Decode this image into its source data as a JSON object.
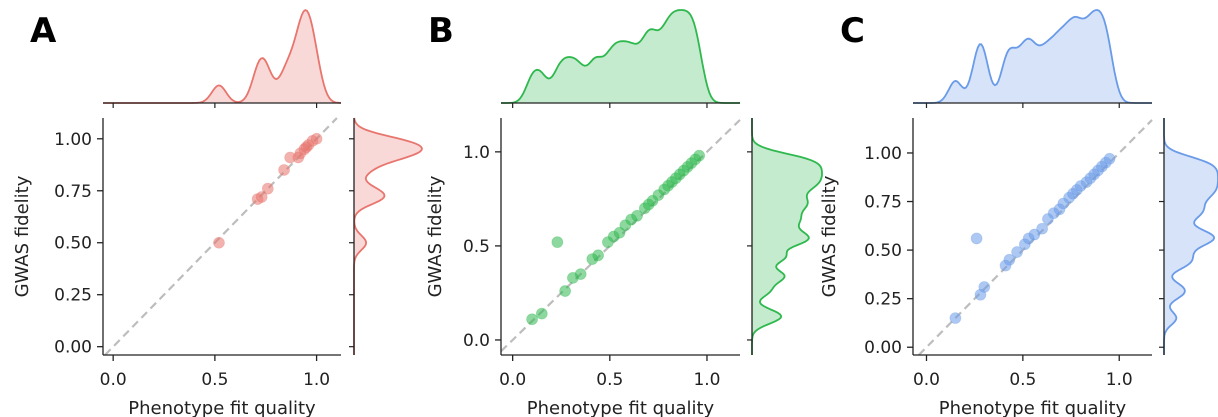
{
  "chart_data": [
    {
      "type": "scatter",
      "panel_label": "A",
      "xlabel": "Phenotype fit quality",
      "ylabel": "GWAS fidelity",
      "xlim": [
        -0.05,
        1.12
      ],
      "ylim": [
        -0.04,
        1.1
      ],
      "xticks": [
        "0.0",
        "0.5",
        "1.0"
      ],
      "yticks": [
        "0.00",
        "0.25",
        "0.50",
        "0.75",
        "1.00"
      ],
      "xtick_values": [
        0,
        0.5,
        1
      ],
      "ytick_values": [
        0,
        0.25,
        0.5,
        0.75,
        1
      ],
      "color": "#e8756e",
      "reference_line": "y = x",
      "marginals": "kde",
      "points": [
        {
          "x": 0.52,
          "y": 0.5
        },
        {
          "x": 0.71,
          "y": 0.71
        },
        {
          "x": 0.73,
          "y": 0.72
        },
        {
          "x": 0.76,
          "y": 0.76
        },
        {
          "x": 0.84,
          "y": 0.85
        },
        {
          "x": 0.87,
          "y": 0.91
        },
        {
          "x": 0.91,
          "y": 0.91
        },
        {
          "x": 0.92,
          "y": 0.93
        },
        {
          "x": 0.94,
          "y": 0.95
        },
        {
          "x": 0.95,
          "y": 0.96
        },
        {
          "x": 0.96,
          "y": 0.97
        },
        {
          "x": 0.98,
          "y": 0.99
        },
        {
          "x": 1.0,
          "y": 1.0
        }
      ]
    },
    {
      "type": "scatter",
      "panel_label": "B",
      "xlabel": "Phenotype fit quality",
      "ylabel": "GWAS fidelity",
      "xlim": [
        -0.06,
        1.17
      ],
      "ylim": [
        -0.08,
        1.18
      ],
      "xticks": [
        "0.0",
        "0.5",
        "1.0"
      ],
      "yticks": [
        "0.0",
        "0.5",
        "1.0"
      ],
      "xtick_values": [
        0,
        0.5,
        1
      ],
      "ytick_values": [
        0,
        0.5,
        1
      ],
      "color": "#2fb84e",
      "reference_line": "y = x",
      "marginals": "kde",
      "points": [
        {
          "x": 0.1,
          "y": 0.11
        },
        {
          "x": 0.15,
          "y": 0.14
        },
        {
          "x": 0.23,
          "y": 0.52
        },
        {
          "x": 0.27,
          "y": 0.26
        },
        {
          "x": 0.31,
          "y": 0.33
        },
        {
          "x": 0.35,
          "y": 0.35
        },
        {
          "x": 0.41,
          "y": 0.43
        },
        {
          "x": 0.44,
          "y": 0.45
        },
        {
          "x": 0.49,
          "y": 0.52
        },
        {
          "x": 0.52,
          "y": 0.55
        },
        {
          "x": 0.55,
          "y": 0.57
        },
        {
          "x": 0.58,
          "y": 0.61
        },
        {
          "x": 0.61,
          "y": 0.64
        },
        {
          "x": 0.64,
          "y": 0.66
        },
        {
          "x": 0.68,
          "y": 0.7
        },
        {
          "x": 0.7,
          "y": 0.72
        },
        {
          "x": 0.72,
          "y": 0.74
        },
        {
          "x": 0.75,
          "y": 0.77
        },
        {
          "x": 0.78,
          "y": 0.8
        },
        {
          "x": 0.8,
          "y": 0.82
        },
        {
          "x": 0.82,
          "y": 0.84
        },
        {
          "x": 0.84,
          "y": 0.86
        },
        {
          "x": 0.86,
          "y": 0.88
        },
        {
          "x": 0.88,
          "y": 0.9
        },
        {
          "x": 0.9,
          "y": 0.92
        },
        {
          "x": 0.92,
          "y": 0.94
        },
        {
          "x": 0.94,
          "y": 0.96
        },
        {
          "x": 0.96,
          "y": 0.98
        }
      ]
    },
    {
      "type": "scatter",
      "panel_label": "C",
      "xlabel": "Phenotype fit quality",
      "ylabel": "GWAS fidelity",
      "xlim": [
        -0.07,
        1.17
      ],
      "ylim": [
        -0.04,
        1.18
      ],
      "xticks": [
        "0.0",
        "0.5",
        "1.0"
      ],
      "yticks": [
        "0.00",
        "0.25",
        "0.50",
        "0.75",
        "1.00"
      ],
      "xtick_values": [
        0,
        0.5,
        1
      ],
      "ytick_values": [
        0,
        0.25,
        0.5,
        0.75,
        1
      ],
      "color": "#6a9be8",
      "reference_line": "y = x",
      "marginals": "kde",
      "points": [
        {
          "x": 0.15,
          "y": 0.15
        },
        {
          "x": 0.26,
          "y": 0.56
        },
        {
          "x": 0.28,
          "y": 0.27
        },
        {
          "x": 0.3,
          "y": 0.31
        },
        {
          "x": 0.41,
          "y": 0.42
        },
        {
          "x": 0.43,
          "y": 0.45
        },
        {
          "x": 0.47,
          "y": 0.49
        },
        {
          "x": 0.51,
          "y": 0.53
        },
        {
          "x": 0.53,
          "y": 0.56
        },
        {
          "x": 0.56,
          "y": 0.58
        },
        {
          "x": 0.6,
          "y": 0.61
        },
        {
          "x": 0.63,
          "y": 0.66
        },
        {
          "x": 0.66,
          "y": 0.69
        },
        {
          "x": 0.69,
          "y": 0.71
        },
        {
          "x": 0.71,
          "y": 0.74
        },
        {
          "x": 0.74,
          "y": 0.77
        },
        {
          "x": 0.76,
          "y": 0.79
        },
        {
          "x": 0.78,
          "y": 0.81
        },
        {
          "x": 0.8,
          "y": 0.83
        },
        {
          "x": 0.83,
          "y": 0.85
        },
        {
          "x": 0.85,
          "y": 0.87
        },
        {
          "x": 0.87,
          "y": 0.89
        },
        {
          "x": 0.89,
          "y": 0.91
        },
        {
          "x": 0.91,
          "y": 0.93
        },
        {
          "x": 0.93,
          "y": 0.95
        },
        {
          "x": 0.95,
          "y": 0.97
        }
      ]
    }
  ]
}
